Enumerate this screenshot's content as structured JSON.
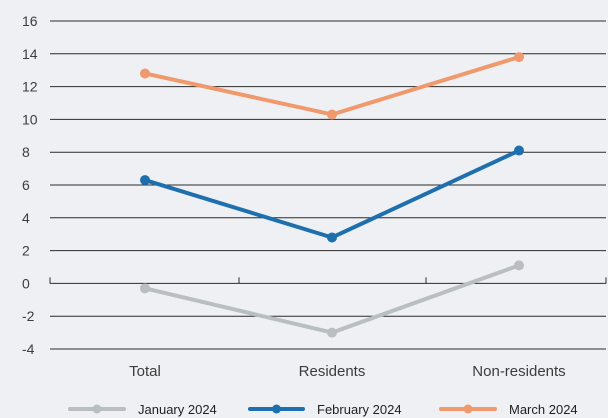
{
  "chart_data": {
    "type": "line",
    "title": "",
    "xlabel": "",
    "ylabel": "",
    "categories": [
      "Total",
      "Residents",
      "Non-residents"
    ],
    "ylim": [
      -4,
      16
    ],
    "yticks": [
      16,
      14,
      12,
      10,
      8,
      6,
      4,
      2,
      0,
      -2,
      -4
    ],
    "grid": true,
    "legend_position": "bottom",
    "series": [
      {
        "name": "January 2024",
        "values": [
          -0.3,
          -3.0,
          1.1
        ],
        "color": "#b9bec0"
      },
      {
        "name": "February 2024",
        "values": [
          6.3,
          2.8,
          8.1
        ],
        "color": "#1d6fae"
      },
      {
        "name": "March 2024",
        "values": [
          12.8,
          10.3,
          13.8
        ],
        "color": "#f0996d"
      }
    ]
  }
}
